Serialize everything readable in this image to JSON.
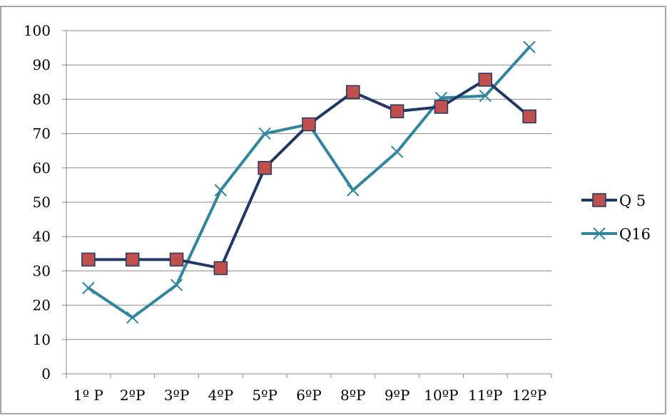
{
  "chart_data": {
    "type": "line",
    "title": "",
    "xlabel": "",
    "ylabel": "",
    "categories": [
      "1º P",
      "2ºP",
      "3ºP",
      "4ºP",
      "5ºP",
      "6ºP",
      "8ºP",
      "9ºP",
      "10ºP",
      "11ºP",
      "12ºP"
    ],
    "ylim": [
      0,
      100
    ],
    "yticks": [
      0,
      10,
      20,
      30,
      40,
      50,
      60,
      70,
      80,
      90,
      100
    ],
    "grid": "horizontal",
    "legend_position": "right",
    "series": [
      {
        "name": "Q 5",
        "marker": "square",
        "line_color": "#1F3864",
        "marker_fill": "#C0504D",
        "values": [
          33.3,
          33.3,
          33.3,
          30.8,
          60.0,
          72.7,
          82.1,
          76.5,
          77.8,
          85.7,
          75.0
        ]
      },
      {
        "name": "Q16",
        "marker": "x",
        "line_color": "#31859C",
        "values": [
          25.0,
          16.4,
          25.9,
          53.5,
          70.0,
          72.7,
          53.5,
          64.7,
          80.4,
          81.0,
          95.2
        ]
      }
    ]
  }
}
